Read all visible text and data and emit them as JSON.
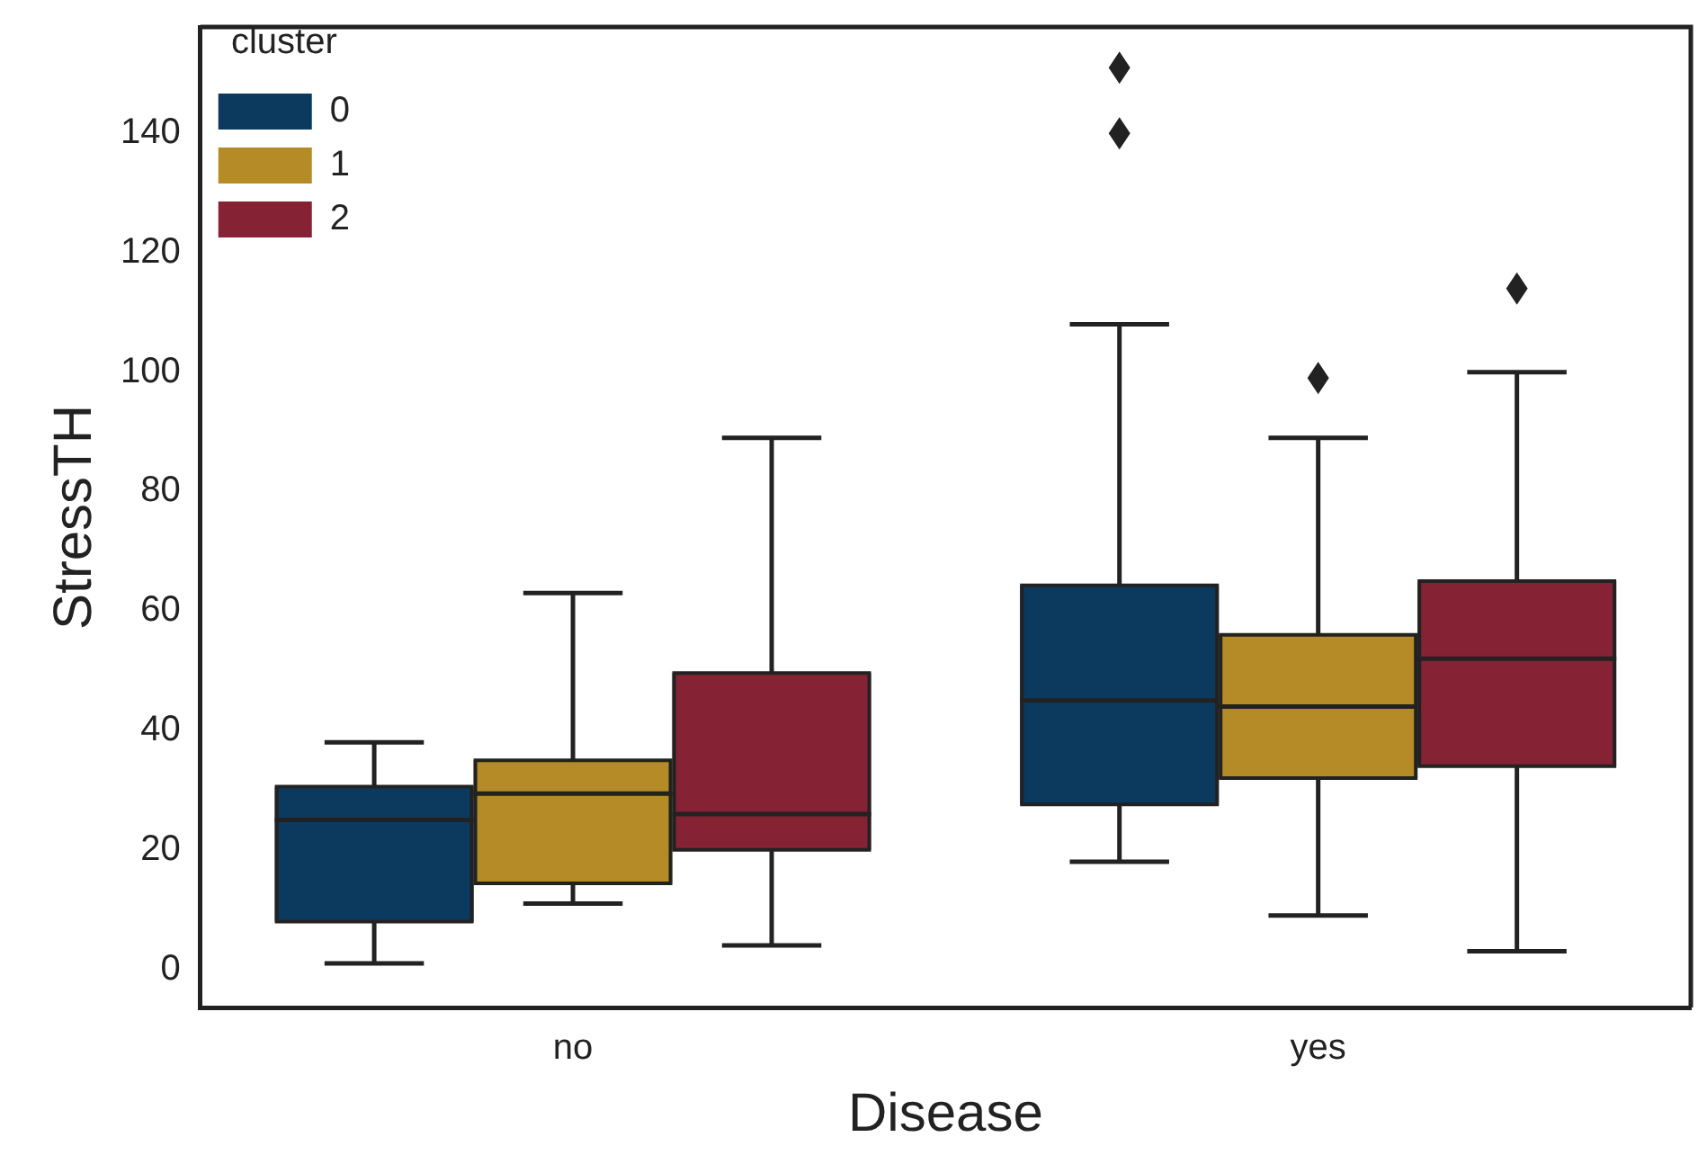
{
  "chart_data": {
    "type": "box",
    "categories": [
      "no",
      "yes"
    ],
    "xlabel": "Disease",
    "ylabel": "StressTH",
    "legend_title": "cluster",
    "legend": "top left",
    "grid": false,
    "ylim": [
      -6.4,
      157.8
    ],
    "yticks": [
      0,
      20,
      40,
      60,
      80,
      100,
      120,
      140
    ],
    "series": [
      {
        "name": "0",
        "color": "#0c3a5f",
        "boxes": [
          {
            "low": 1,
            "q1": 8,
            "median": 25,
            "q3": 30.6,
            "high": 38
          },
          {
            "low": 18,
            "q1": 27.6,
            "median": 45,
            "q3": 64.3,
            "high": 108,
            "outliers": [
              140,
              151
            ]
          }
        ]
      },
      {
        "name": "1",
        "color": "#b58b28",
        "boxes": [
          {
            "low": 11,
            "q1": 14.4,
            "median": 29.4,
            "q3": 35,
            "high": 63
          },
          {
            "low": 9,
            "q1": 32,
            "median": 44,
            "q3": 56,
            "high": 89,
            "outliers": [
              99
            ]
          }
        ]
      },
      {
        "name": "2",
        "color": "#852234",
        "boxes": [
          {
            "low": 4,
            "q1": 20,
            "median": 26,
            "q3": 49.6,
            "high": 89
          },
          {
            "low": 3,
            "q1": 34,
            "median": 52,
            "q3": 65,
            "high": 100,
            "outliers": [
              114
            ]
          }
        ]
      }
    ]
  }
}
